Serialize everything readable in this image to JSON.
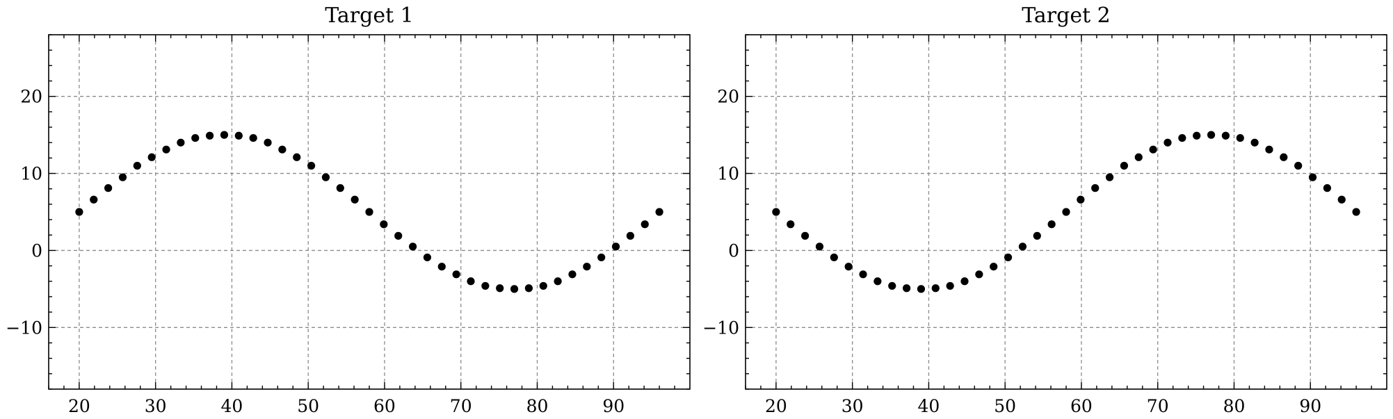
{
  "chart_data": [
    {
      "type": "scatter",
      "title": "Target 1",
      "xlabel": "",
      "ylabel": "",
      "xlim": [
        16,
        100
      ],
      "ylim": [
        -18,
        28
      ],
      "xticks": [
        20,
        30,
        40,
        50,
        60,
        70,
        80,
        90
      ],
      "yticks": [
        -10,
        0,
        10,
        20
      ],
      "grid": true,
      "series": [
        {
          "x": [
            20,
            21.9,
            23.8,
            25.7,
            27.6,
            29.5,
            31.4,
            33.3,
            35.2,
            37.1,
            39,
            40.9,
            42.8,
            44.7,
            46.6,
            48.5,
            50.4,
            52.3,
            54.2,
            56.1,
            58,
            59.9,
            61.8,
            63.7,
            65.6,
            67.5,
            69.4,
            71.3,
            73.2,
            75.1,
            77,
            78.9,
            80.8,
            82.7,
            84.6,
            86.5,
            88.4,
            90.3,
            92.2,
            94.1,
            96
          ],
          "y": [
            5,
            6.6,
            8.1,
            9.5,
            11,
            12.1,
            13.1,
            14,
            14.6,
            14.9,
            15,
            14.9,
            14.6,
            14,
            13.1,
            12.1,
            11,
            9.5,
            8.1,
            6.6,
            5,
            3.4,
            1.9,
            0.5,
            -0.9,
            -2.1,
            -3.1,
            -4,
            -4.6,
            -4.9,
            -5,
            -4.9,
            -4.6,
            -4,
            -3.1,
            -2.1,
            -0.9,
            0.5,
            1.9,
            3.4,
            5
          ]
        }
      ]
    },
    {
      "type": "scatter",
      "title": "Target 2",
      "xlabel": "",
      "ylabel": "",
      "xlim": [
        16,
        100
      ],
      "ylim": [
        -18,
        28
      ],
      "xticks": [
        20,
        30,
        40,
        50,
        60,
        70,
        80,
        90
      ],
      "yticks": [
        -10,
        0,
        10,
        20
      ],
      "grid": true,
      "series": [
        {
          "x": [
            20,
            21.9,
            23.8,
            25.7,
            27.6,
            29.5,
            31.4,
            33.3,
            35.2,
            37.1,
            39,
            40.9,
            42.8,
            44.7,
            46.6,
            48.5,
            50.4,
            52.3,
            54.2,
            56.1,
            58,
            59.9,
            61.8,
            63.7,
            65.6,
            67.5,
            69.4,
            71.3,
            73.2,
            75.1,
            77,
            78.9,
            80.8,
            82.7,
            84.6,
            86.5,
            88.4,
            90.3,
            92.2,
            94.1,
            96
          ],
          "y": [
            5,
            3.4,
            1.9,
            0.5,
            -0.9,
            -2.1,
            -3.1,
            -4,
            -4.6,
            -4.9,
            -5,
            -4.9,
            -4.6,
            -4,
            -3.1,
            -2.1,
            -0.9,
            0.5,
            1.9,
            3.4,
            5,
            6.6,
            8.1,
            9.5,
            11,
            12.1,
            13.1,
            14,
            14.6,
            14.9,
            15,
            14.9,
            14.6,
            14,
            13.1,
            12.1,
            11,
            9.5,
            8.1,
            6.6,
            5
          ]
        }
      ]
    }
  ]
}
